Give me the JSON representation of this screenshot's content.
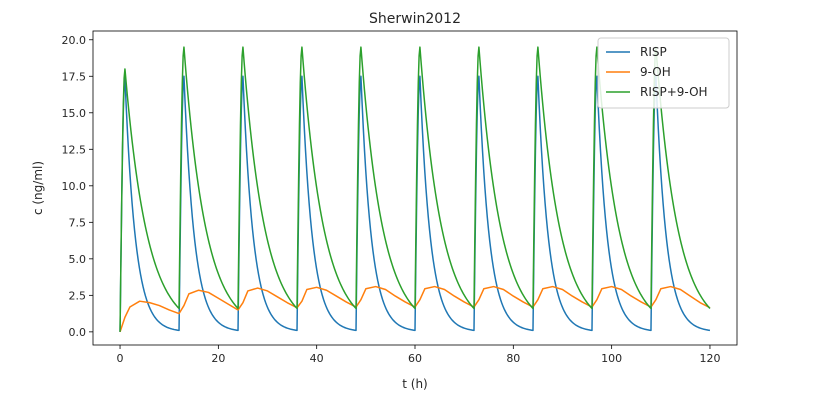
{
  "chart_data": {
    "type": "line",
    "title": "Sherwin2012",
    "xlabel": "t (h)",
    "ylabel": "c (ng/ml)",
    "xlim": [
      -5.5,
      125.5
    ],
    "ylim": [
      -0.9,
      20.6
    ],
    "xticks": [
      0,
      20,
      40,
      60,
      80,
      100,
      120
    ],
    "yticks": [
      0.0,
      2.5,
      5.0,
      7.5,
      10.0,
      12.5,
      15.0,
      17.5,
      20.0
    ],
    "xtick_labels": [
      "0",
      "20",
      "40",
      "60",
      "80",
      "100",
      "120"
    ],
    "ytick_labels": [
      "0.0",
      "2.5",
      "5.0",
      "7.5",
      "10.0",
      "12.5",
      "15.0",
      "17.5",
      "20.0"
    ],
    "grid": false,
    "legend_position": "top-right",
    "dosing": {
      "dose_times_h": [
        0,
        12,
        24,
        36,
        48,
        60,
        72,
        84,
        96,
        108
      ],
      "t_end_h": 120
    },
    "series": [
      {
        "name": "RISP",
        "color": "#1f77b4",
        "first_peak": 17.4,
        "steady_peak": 17.5,
        "trough": 0.1,
        "peak_time_after_dose_h": 1.0
      },
      {
        "name": "9-OH",
        "color": "#ff7f0e",
        "points": [
          [
            0,
            0.0
          ],
          [
            1,
            1.0
          ],
          [
            2,
            1.7
          ],
          [
            4,
            2.1
          ],
          [
            6,
            2.0
          ],
          [
            8,
            1.8
          ],
          [
            10,
            1.5
          ],
          [
            12,
            1.25
          ],
          [
            13,
            1.8
          ],
          [
            14,
            2.6
          ],
          [
            16,
            2.85
          ],
          [
            18,
            2.7
          ],
          [
            20,
            2.3
          ],
          [
            22,
            1.9
          ],
          [
            24,
            1.5
          ],
          [
            25,
            2.0
          ],
          [
            26,
            2.8
          ],
          [
            28,
            3.0
          ],
          [
            30,
            2.8
          ],
          [
            32,
            2.4
          ],
          [
            34,
            2.0
          ],
          [
            36,
            1.65
          ],
          [
            37,
            2.1
          ],
          [
            38,
            2.9
          ],
          [
            40,
            3.05
          ],
          [
            42,
            2.85
          ],
          [
            44,
            2.45
          ],
          [
            46,
            2.05
          ],
          [
            48,
            1.7
          ],
          [
            49,
            2.2
          ],
          [
            50,
            2.95
          ],
          [
            52,
            3.1
          ],
          [
            54,
            2.9
          ],
          [
            56,
            2.45
          ],
          [
            58,
            2.05
          ],
          [
            60,
            1.7
          ],
          [
            61,
            2.2
          ],
          [
            62,
            2.95
          ],
          [
            64,
            3.1
          ],
          [
            66,
            2.9
          ],
          [
            68,
            2.45
          ],
          [
            70,
            2.05
          ],
          [
            72,
            1.7
          ],
          [
            73,
            2.2
          ],
          [
            74,
            2.95
          ],
          [
            76,
            3.1
          ],
          [
            78,
            2.9
          ],
          [
            80,
            2.45
          ],
          [
            82,
            2.05
          ],
          [
            84,
            1.7
          ],
          [
            85,
            2.2
          ],
          [
            86,
            2.95
          ],
          [
            88,
            3.1
          ],
          [
            90,
            2.9
          ],
          [
            92,
            2.45
          ],
          [
            94,
            2.05
          ],
          [
            96,
            1.7
          ],
          [
            97,
            2.2
          ],
          [
            98,
            2.95
          ],
          [
            100,
            3.1
          ],
          [
            102,
            2.9
          ],
          [
            104,
            2.45
          ],
          [
            106,
            2.05
          ],
          [
            108,
            1.7
          ],
          [
            109,
            2.2
          ],
          [
            110,
            2.95
          ],
          [
            112,
            3.1
          ],
          [
            114,
            2.9
          ],
          [
            116,
            2.45
          ],
          [
            118,
            2.0
          ],
          [
            120,
            1.65
          ]
        ]
      },
      {
        "name": "RISP+9-OH",
        "color": "#2ca02c",
        "first_peak": 18.0,
        "steady_peak": 19.5,
        "trough": 1.6,
        "peak_time_after_dose_h": 1.0
      }
    ]
  }
}
